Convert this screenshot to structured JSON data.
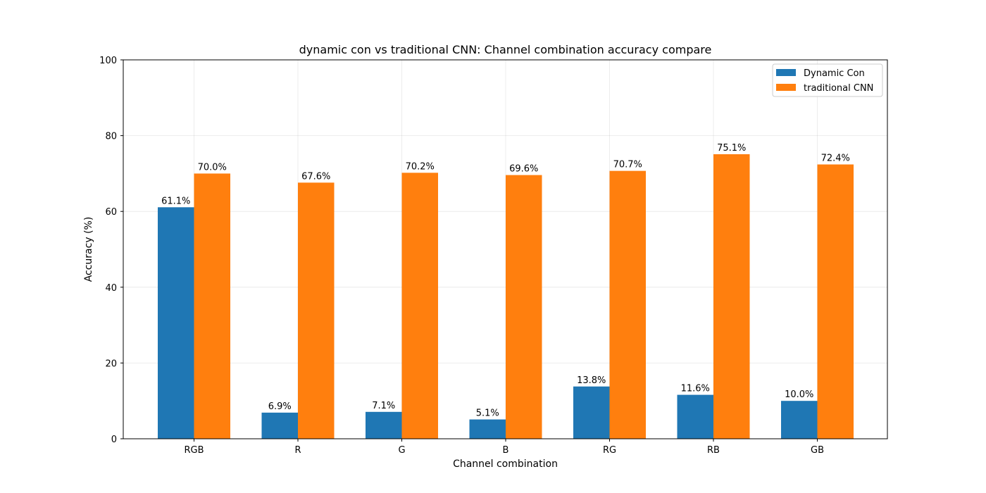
{
  "chart_data": {
    "type": "bar",
    "title": "dynamic con vs traditional CNN: Channel combination accuracy compare",
    "xlabel": "Channel combination",
    "ylabel": "Accuracy (%)",
    "ylim": [
      0,
      100
    ],
    "yticks": [
      0,
      20,
      40,
      60,
      80,
      100
    ],
    "grid": true,
    "legend_position": "top-right",
    "categories": [
      "RGB",
      "R",
      "G",
      "B",
      "RG",
      "RB",
      "GB"
    ],
    "series": [
      {
        "name": "Dynamic Con",
        "color": "#1f77b4",
        "values": [
          61.1,
          6.9,
          7.1,
          5.1,
          13.8,
          11.6,
          10.0
        ],
        "labels": [
          "61.1%",
          "6.9%",
          "7.1%",
          "5.1%",
          "13.8%",
          "11.6%",
          "10.0%"
        ]
      },
      {
        "name": "traditional CNN",
        "color": "#ff7f0e",
        "values": [
          70.0,
          67.6,
          70.2,
          69.6,
          70.7,
          75.1,
          72.4
        ],
        "labels": [
          "70.0%",
          "67.6%",
          "70.2%",
          "69.6%",
          "70.7%",
          "75.1%",
          "72.4%"
        ]
      }
    ]
  }
}
